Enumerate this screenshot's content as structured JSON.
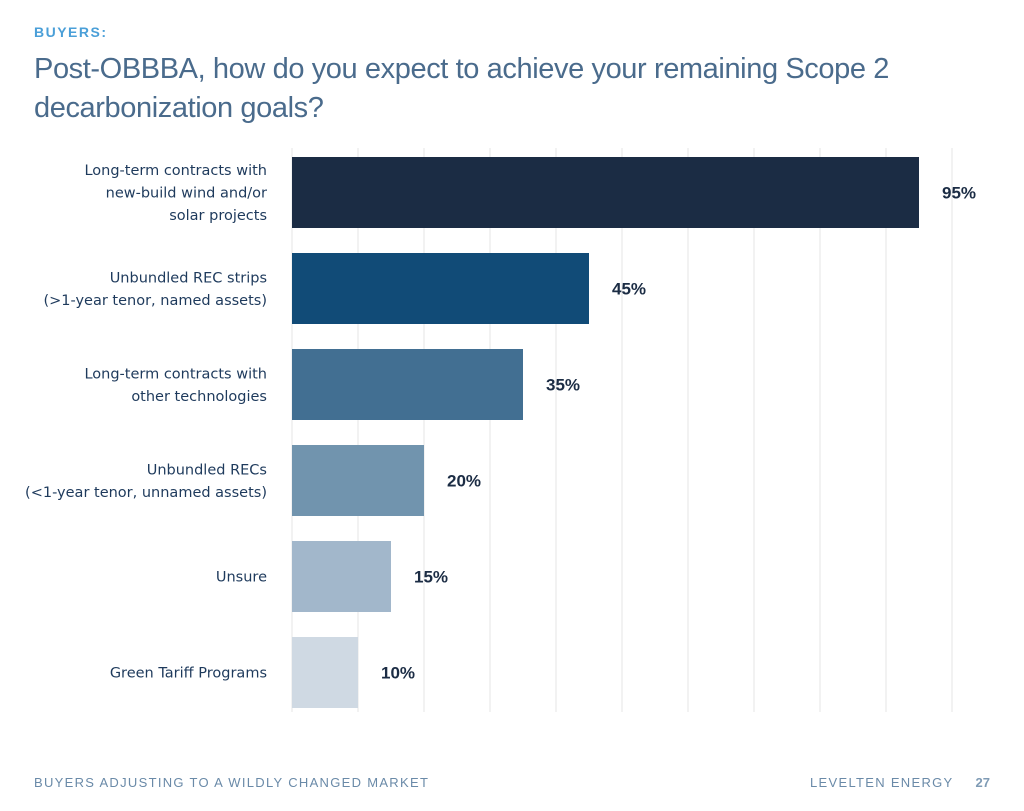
{
  "header": {
    "eyebrow": "BUYERS:",
    "title": "Post-OBBBA, how do you expect to achieve your remaining Scope 2 decarbonization goals?"
  },
  "chart_data": {
    "type": "bar",
    "orientation": "horizontal",
    "title": "Post-OBBBA, how do you expect to achieve your remaining Scope 2 decarbonization goals?",
    "xlabel": "",
    "ylabel": "",
    "xlim": [
      0,
      100
    ],
    "grid": true,
    "legend": "none",
    "unit": "%",
    "categories": [
      [
        "Long-term contracts with",
        "new-build wind and/or",
        "solar projects"
      ],
      [
        "Unbundled REC strips",
        "(>1-year tenor, named assets)"
      ],
      [
        "Long-term contracts with",
        "other technologies"
      ],
      [
        "Unbundled RECs",
        "(<1-year tenor, unnamed assets)"
      ],
      [
        "Unsure"
      ],
      [
        "Green Tariff Programs"
      ]
    ],
    "values": [
      95,
      45,
      35,
      20,
      15,
      10
    ],
    "value_labels": [
      "95%",
      "45%",
      "35%",
      "20%",
      "15%",
      "10%"
    ],
    "colors": [
      "#1b2c44",
      "#114b77",
      "#426f92",
      "#7194ae",
      "#a2b7cb",
      "#cfd9e3"
    ]
  },
  "footer": {
    "left": "BUYERS ADJUSTING TO A WILDLY CHANGED MARKET",
    "right": "LEVELTEN ENERGY",
    "page": "27"
  }
}
